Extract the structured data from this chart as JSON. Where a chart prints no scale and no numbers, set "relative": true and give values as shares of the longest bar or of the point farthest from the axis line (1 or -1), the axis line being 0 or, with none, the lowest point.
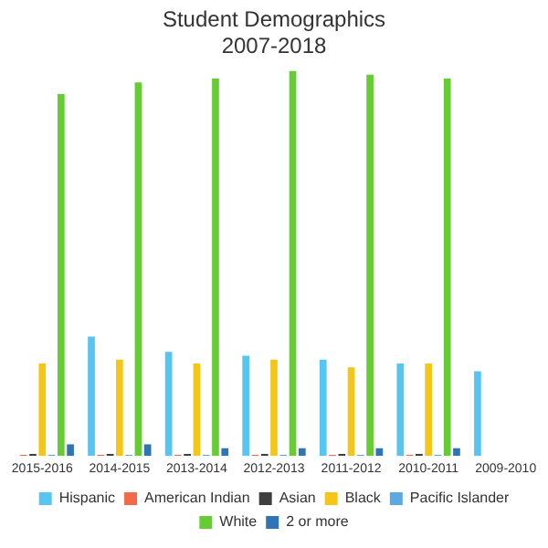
{
  "chart_data": {
    "type": "bar",
    "title": "Student Demographics",
    "subtitle": "2007-2018",
    "relative": true,
    "legend": "bottom",
    "grid": false,
    "categories": [
      "2015-2016",
      "2014-2015",
      "2013-2014",
      "2012-2013",
      "2011-2012",
      "2010-2011",
      "2009-2010"
    ],
    "series": [
      {
        "name": "Hispanic",
        "color": "#56c5f2",
        "values": [
          null,
          0.31,
          0.27,
          0.26,
          0.25,
          0.24,
          0.22
        ]
      },
      {
        "name": "American Indian",
        "color": "#f2694b",
        "values": [
          0.003,
          0.003,
          0.003,
          0.003,
          0.003,
          0.003,
          null
        ]
      },
      {
        "name": "Asian",
        "color": "#3f3f3f",
        "values": [
          0.005,
          0.005,
          0.005,
          0.005,
          0.005,
          0.005,
          null
        ]
      },
      {
        "name": "Black",
        "color": "#f5c518",
        "values": [
          0.24,
          0.25,
          0.24,
          0.25,
          0.23,
          0.24,
          null
        ]
      },
      {
        "name": "Pacific Islander",
        "color": "#5aa9e0",
        "values": [
          0.003,
          0.003,
          0.003,
          0.003,
          0.003,
          0.003,
          null
        ]
      },
      {
        "name": "White",
        "color": "#66cc33",
        "values": [
          0.94,
          0.97,
          0.98,
          1,
          0.99,
          0.98,
          null
        ]
      },
      {
        "name": "2 or more",
        "color": "#2f75b5",
        "values": [
          0.03,
          0.03,
          0.02,
          0.02,
          0.02,
          0.02,
          null
        ]
      }
    ]
  }
}
